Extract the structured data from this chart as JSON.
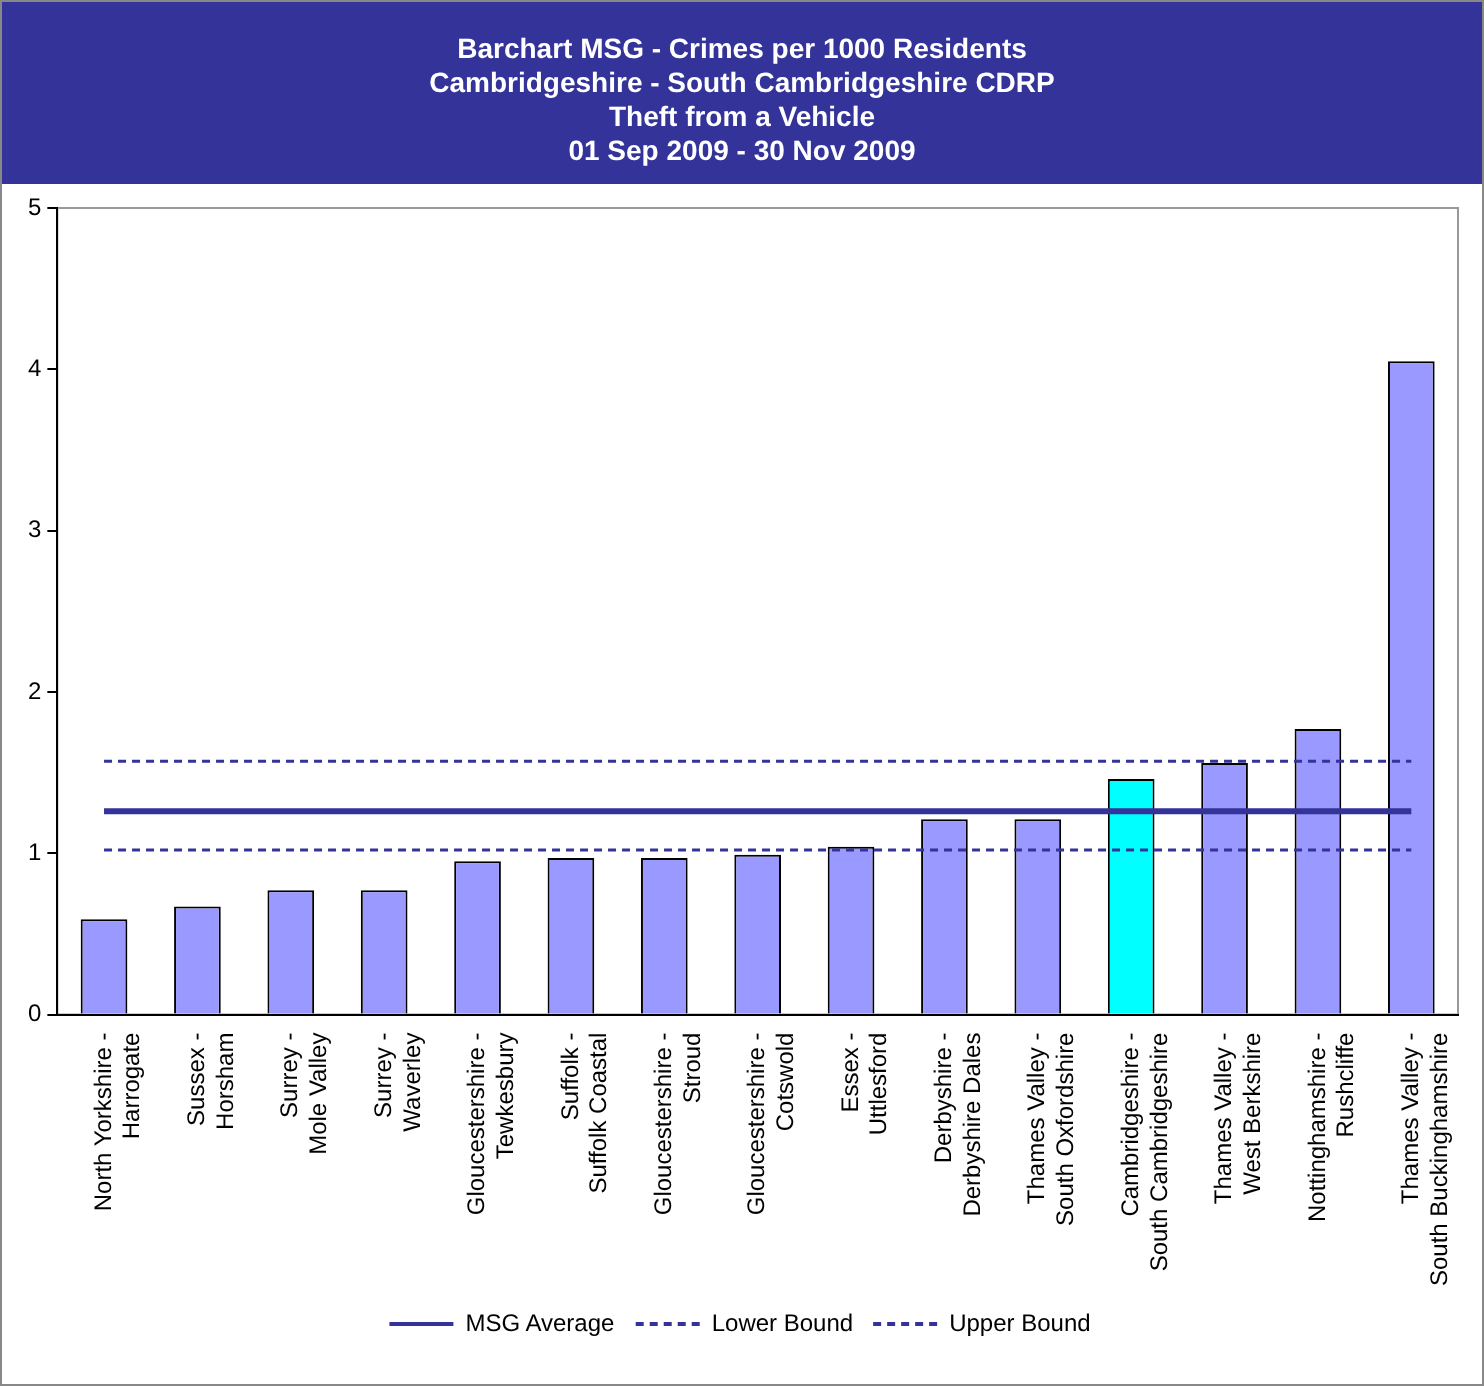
{
  "chart_data": {
    "type": "bar",
    "title": "Barchart MSG - Crimes per 1000 Residents",
    "subtitle": "Cambridgeshire - South Cambridgeshire CDRP\nTheft from a Vehicle\n01 Sep 2009 - 30 Nov 2009",
    "categories": [
      "North Yorkshire -\nHarrogate",
      "Sussex -\nHorsham",
      "Surrey -\nMole Valley",
      "Surrey -\nWaverley",
      "Gloucestershire -\nTewkesbury",
      "Suffolk -\nSuffolk Coastal",
      "Gloucestershire -\nStroud",
      "Gloucestershire -\nCotswold",
      "Essex -\nUttlesford",
      "Derbyshire -\nDerbyshire Dales",
      "Thames Valley -\nSouth Oxfordshire",
      "Cambridgeshire -\nSouth Cambridgeshire",
      "Thames Valley -\nWest Berkshire",
      "Nottinghamshire -\nRushcliffe",
      "Thames Valley -\nSouth Buckinghamshire"
    ],
    "series": [
      {
        "colors": [
          "#9999ff",
          "#9999ff",
          "#9999ff",
          "#9999ff",
          "#9999ff",
          "#9999ff",
          "#9999ff",
          "#9999ff",
          "#9999ff",
          "#9999ff",
          "#9999ff",
          "#00ffff",
          "#9999ff",
          "#9999ff",
          "#9999ff"
        ],
        "values": [
          0.59,
          0.67,
          0.77,
          0.77,
          0.95,
          0.97,
          0.97,
          0.99,
          1.04,
          1.21,
          1.21,
          1.46,
          1.56,
          1.77,
          4.05
        ]
      },
      {
        "type": "line",
        "name": "MSG Average",
        "color": "#333399",
        "line_style": "solid",
        "values": [
          1.26,
          1.26,
          1.26,
          1.26,
          1.26,
          1.26,
          1.26,
          1.26,
          1.26,
          1.26,
          1.26,
          1.26,
          1.26,
          1.26,
          1.26
        ]
      },
      {
        "type": "line",
        "name": "Lower Bound",
        "color": "#333399",
        "line_style": "dashed",
        "values": [
          1.02,
          1.02,
          1.02,
          1.02,
          1.02,
          1.02,
          1.02,
          1.02,
          1.02,
          1.02,
          1.02,
          1.02,
          1.02,
          1.02,
          1.02
        ]
      },
      {
        "type": "line",
        "name": "Upper Bound",
        "color": "#333399",
        "line_style": "dashed",
        "values": [
          1.57,
          1.57,
          1.57,
          1.57,
          1.57,
          1.57,
          1.57,
          1.57,
          1.57,
          1.57,
          1.57,
          1.57,
          1.57,
          1.57,
          1.57
        ]
      }
    ],
    "ylim": [
      0,
      5
    ],
    "yticks": [
      0,
      1,
      2,
      3,
      4,
      5
    ],
    "grid": false,
    "legend": "bottom",
    "marker": "none"
  }
}
